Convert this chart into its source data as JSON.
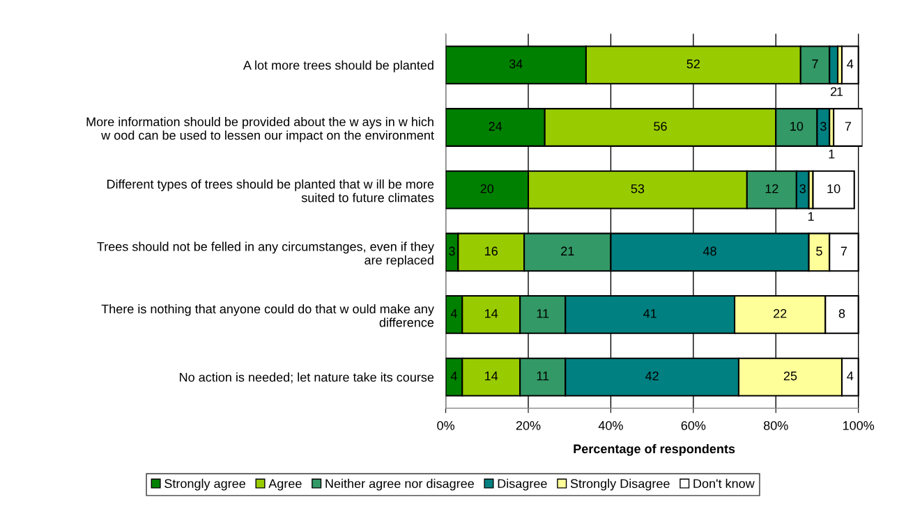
{
  "chart_data": {
    "type": "bar",
    "orientation": "horizontal",
    "stacked": true,
    "xlabel": "Percentage of respondents",
    "categories": [
      "A lot more trees should be planted",
      "More information should be provided about the w ays in w hich\nw ood can be used to lessen our impact on the environment",
      "Different types of trees should be planted that w ill be more\nsuited to future climates",
      "Trees should not be felled in any circumstanges, even if they\nare replaced",
      "There is nothing that anyone could do that w ould make any\ndifference",
      "No action is needed; let nature take its course"
    ],
    "series": [
      {
        "name": "Strongly agree",
        "color": "#008000",
        "values": [
          34,
          24,
          20,
          3,
          4,
          4
        ]
      },
      {
        "name": "Agree",
        "color": "#99cc00",
        "values": [
          52,
          56,
          53,
          16,
          14,
          14
        ]
      },
      {
        "name": "Neither agree nor disagree",
        "color": "#339966",
        "values": [
          7,
          10,
          12,
          21,
          11,
          11
        ]
      },
      {
        "name": "Disagree",
        "color": "#008080",
        "values": [
          2,
          3,
          3,
          48,
          41,
          42
        ]
      },
      {
        "name": "Strongly Disagree",
        "color": "#ffff99",
        "values": [
          1,
          1,
          1,
          5,
          22,
          25
        ]
      },
      {
        "name": "Don't know",
        "color": "#ffffff",
        "values": [
          4,
          7,
          10,
          7,
          8,
          4
        ]
      }
    ],
    "xlim": [
      0,
      101
    ],
    "xticks": [
      {
        "value": 0,
        "label": "0%"
      },
      {
        "value": 20,
        "label": "20%"
      },
      {
        "value": 40,
        "label": "40%"
      },
      {
        "value": 60,
        "label": "60%"
      },
      {
        "value": 80,
        "label": "80%"
      },
      {
        "value": 100,
        "label": "100%"
      }
    ],
    "grid": "x",
    "legend": "bottom",
    "data_labels": true
  }
}
